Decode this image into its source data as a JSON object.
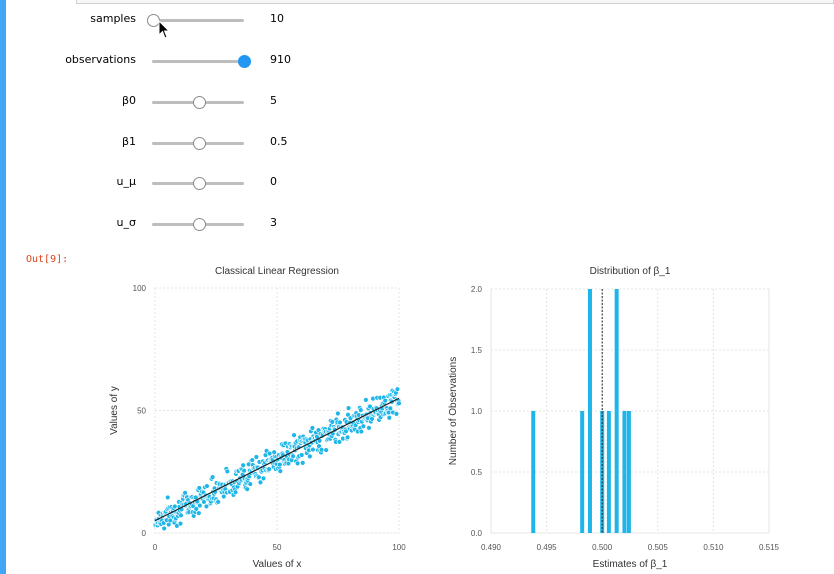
{
  "notebook": {
    "out_prompt": "Out[9]:"
  },
  "sliders": [
    {
      "label": "samples",
      "value": "10",
      "fraction": 0.0
    },
    {
      "label": "observations",
      "value": "910",
      "fraction": 1.0
    },
    {
      "label": "β0",
      "value": "5",
      "fraction": 0.5
    },
    {
      "label": "β1",
      "value": "0.5",
      "fraction": 0.5
    },
    {
      "label": "u_μ",
      "value": "0",
      "fraction": 0.5
    },
    {
      "label": "u_σ",
      "value": "3",
      "fraction": 0.5
    }
  ],
  "colors": {
    "accent": "#42a5f5",
    "series": "#1eb5e8",
    "line": "#222222"
  },
  "chart_data": [
    {
      "type": "scatter",
      "title": "Classical Linear Regression",
      "xlabel": "Values of x",
      "ylabel": "Values of y",
      "xlim": [
        0,
        100
      ],
      "ylim": [
        0,
        100
      ],
      "xticks": [
        0,
        50,
        100
      ],
      "yticks": [
        0,
        50,
        100
      ],
      "points_count": 910,
      "fit_line": {
        "x": [
          0,
          100
        ],
        "y": [
          5,
          55
        ]
      },
      "grid": true
    },
    {
      "type": "bar",
      "title": "Distribution of β_1",
      "xlabel": "Estimates of β_1",
      "ylabel": "Number of Observations",
      "xlim": [
        0.49,
        0.515
      ],
      "ylim": [
        0,
        2.0
      ],
      "xticks": [
        "0.490",
        "0.495",
        "0.500",
        "0.505",
        "0.510",
        "0.515"
      ],
      "yticks": [
        "0.0",
        "0.5",
        "1.0",
        "1.5",
        "2.0"
      ],
      "bins": [
        {
          "x": 0.4938,
          "count": 1
        },
        {
          "x": 0.4982,
          "count": 1
        },
        {
          "x": 0.4989,
          "count": 2
        },
        {
          "x": 0.5,
          "count": 1
        },
        {
          "x": 0.5006,
          "count": 1
        },
        {
          "x": 0.5013,
          "count": 2
        },
        {
          "x": 0.502,
          "count": 1
        },
        {
          "x": 0.5024,
          "count": 1
        }
      ],
      "reference_line": 0.5,
      "grid": true
    }
  ]
}
